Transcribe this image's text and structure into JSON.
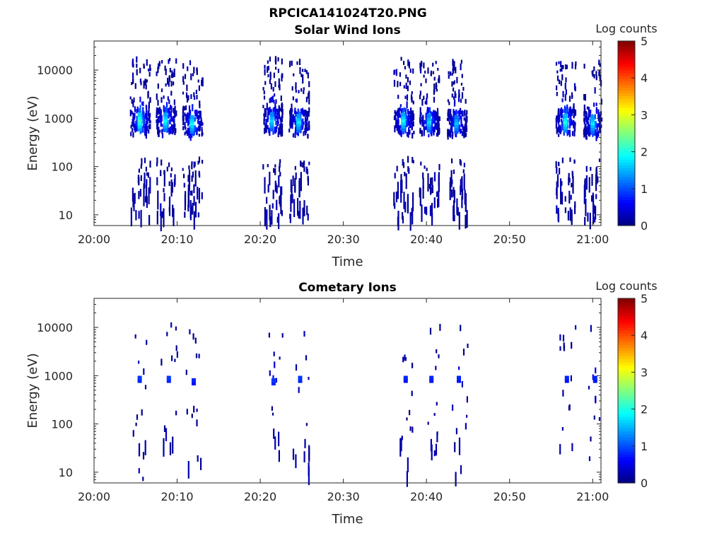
{
  "figure": {
    "title": "RPCICA141024T20.PNG"
  },
  "chart_data": [
    {
      "type": "heatmap",
      "title": "Solar Wind Ions",
      "xlabel": "Time",
      "ylabel": "Energy (eV)",
      "x_tick_labels": [
        "20:00",
        "20:10",
        "20:20",
        "20:30",
        "20:40",
        "20:50",
        "21:00"
      ],
      "x_ticks_min": [
        0,
        10,
        20,
        30,
        40,
        50,
        60
      ],
      "xlim_min": [
        0,
        61
      ],
      "y_tick_labels": [
        "10",
        "100",
        "1000",
        "10000"
      ],
      "y_ticks": [
        10,
        100,
        1000,
        10000
      ],
      "ylim": [
        6,
        40000
      ],
      "y_scale": "log",
      "colorbar": {
        "label": "Log counts",
        "tick_labels": [
          "0",
          "1",
          "2",
          "3",
          "4",
          "5"
        ],
        "ticks": [
          0,
          1,
          2,
          3,
          4,
          5
        ],
        "range": [
          0,
          5
        ],
        "colormap": "jet"
      },
      "bursts": [
        {
          "t_min": 5.5,
          "peak_energy": 900,
          "peak_log": 2.2
        },
        {
          "t_min": 8.6,
          "peak_energy": 900,
          "peak_log": 1.9
        },
        {
          "t_min": 11.8,
          "peak_energy": 800,
          "peak_log": 1.9
        },
        {
          "t_min": 21.4,
          "peak_energy": 900,
          "peak_log": 1.7
        },
        {
          "t_min": 24.6,
          "peak_energy": 850,
          "peak_log": 1.8
        },
        {
          "t_min": 37.2,
          "peak_energy": 900,
          "peak_log": 1.9
        },
        {
          "t_min": 40.3,
          "peak_energy": 850,
          "peak_log": 1.7
        },
        {
          "t_min": 43.6,
          "peak_energy": 800,
          "peak_log": 1.6
        },
        {
          "t_min": 56.7,
          "peak_energy": 850,
          "peak_log": 2.0
        },
        {
          "t_min": 60.0,
          "peak_energy": 800,
          "peak_log": 1.8
        }
      ]
    },
    {
      "type": "heatmap",
      "title": "Cometary Ions",
      "xlabel": "Time",
      "ylabel": "Energy (eV)",
      "x_tick_labels": [
        "20:00",
        "20:10",
        "20:20",
        "20:30",
        "20:40",
        "20:50",
        "21:00"
      ],
      "x_ticks_min": [
        0,
        10,
        20,
        30,
        40,
        50,
        60
      ],
      "xlim_min": [
        0,
        61
      ],
      "y_tick_labels": [
        "10",
        "100",
        "1000",
        "10000"
      ],
      "y_ticks": [
        10,
        100,
        1000,
        10000
      ],
      "ylim": [
        6,
        40000
      ],
      "y_scale": "log",
      "colorbar": {
        "label": "Log counts",
        "tick_labels": [
          "0",
          "1",
          "2",
          "3",
          "4",
          "5"
        ],
        "ticks": [
          0,
          1,
          2,
          3,
          4,
          5
        ],
        "range": [
          0,
          5
        ],
        "colormap": "jet"
      },
      "bursts": [
        {
          "t_min": 5.5,
          "peak_energy": 900,
          "peak_log": 0.9
        },
        {
          "t_min": 9.0,
          "peak_energy": 900,
          "peak_log": 0.9
        },
        {
          "t_min": 12.0,
          "peak_energy": 800,
          "peak_log": 0.8
        },
        {
          "t_min": 21.6,
          "peak_energy": 800,
          "peak_log": 0.9
        },
        {
          "t_min": 24.8,
          "peak_energy": 900,
          "peak_log": 0.9
        },
        {
          "t_min": 37.5,
          "peak_energy": 900,
          "peak_log": 0.8
        },
        {
          "t_min": 40.6,
          "peak_energy": 900,
          "peak_log": 0.8
        },
        {
          "t_min": 43.9,
          "peak_energy": 900,
          "peak_log": 0.8
        },
        {
          "t_min": 56.9,
          "peak_energy": 900,
          "peak_log": 0.8
        },
        {
          "t_min": 60.3,
          "peak_energy": 900,
          "peak_log": 0.8
        }
      ]
    }
  ]
}
